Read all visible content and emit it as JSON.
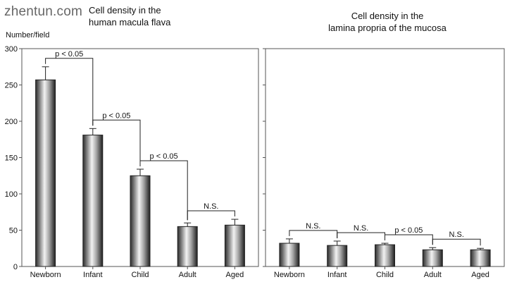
{
  "watermark": "zhentun.com",
  "ylabel": "Number/field",
  "chart_data": [
    {
      "type": "bar",
      "title": "Cell density in the human macula flava",
      "title_lines": [
        "Cell density in the",
        "human macula flava"
      ],
      "ylabel": "Number/field",
      "ylim": [
        0,
        300
      ],
      "yticks": [
        "0",
        "50",
        "100",
        "150",
        "200",
        "250",
        "300"
      ],
      "categories": [
        "Newborn",
        "Infant",
        "Child",
        "Adult",
        "Aged"
      ],
      "values": [
        257,
        181,
        125,
        55,
        57
      ],
      "errors": [
        18,
        9,
        9,
        5,
        8
      ],
      "comparisons": [
        {
          "from": 0,
          "to": 1,
          "label": "p < 0.05"
        },
        {
          "from": 1,
          "to": 2,
          "label": "p < 0.05"
        },
        {
          "from": 2,
          "to": 3,
          "label": "p < 0.05"
        },
        {
          "from": 3,
          "to": 4,
          "label": "N.S."
        }
      ]
    },
    {
      "type": "bar",
      "title": "Cell density in the lamina propria of the mucosa",
      "title_lines": [
        "Cell density in the",
        "lamina propria of the mucosa"
      ],
      "ylabel": "",
      "ylim": [
        0,
        300
      ],
      "yticks": [
        "0",
        "50",
        "100",
        "150",
        "200",
        "250",
        "300"
      ],
      "categories": [
        "Newborn",
        "Infant",
        "Child",
        "Adult",
        "Aged"
      ],
      "values": [
        32,
        29,
        30,
        23,
        23
      ],
      "errors": [
        6,
        6,
        2,
        3,
        2
      ],
      "comparisons": [
        {
          "from": 0,
          "to": 1,
          "label": "N.S."
        },
        {
          "from": 1,
          "to": 2,
          "label": "N.S."
        },
        {
          "from": 2,
          "to": 3,
          "label": "p < 0.05"
        },
        {
          "from": 3,
          "to": 4,
          "label": "N.S."
        }
      ]
    }
  ]
}
